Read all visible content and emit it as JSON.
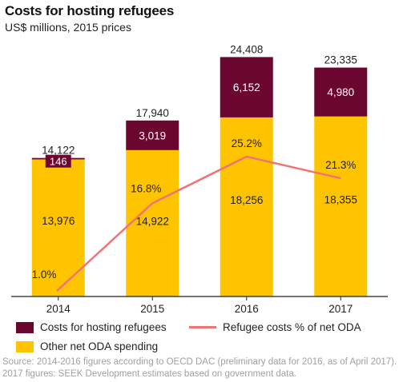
{
  "title": "Costs for hosting refugees",
  "subtitle": "US$ millions, 2015 prices",
  "colors": {
    "hosting": "#6b0631",
    "oda": "#ffc400",
    "line": "#f07474",
    "axis": "#222222"
  },
  "legend": {
    "hosting_label": "Costs for hosting refugees",
    "oda_label": "Other net ODA spending",
    "line_label": "Refugee costs % of net ODA"
  },
  "source": "Source: 2014-2016 figures according to OECD DAC (preliminary data for 2016, as of April 2017). 2017 figures: SEEK Development estimates based on government data.",
  "chart_data": {
    "type": "bar",
    "stacked": true,
    "categories": [
      "2014",
      "2015",
      "2016",
      "2017"
    ],
    "series": [
      {
        "name": "Other net ODA spending",
        "values": [
          13976,
          14922,
          18256,
          18355
        ],
        "labels": [
          "13,976",
          "14,922",
          "18,256",
          "18,355"
        ]
      },
      {
        "name": "Costs for hosting refugees",
        "values": [
          146,
          3019,
          6152,
          4980
        ],
        "labels": [
          "146",
          "3,019",
          "6,152",
          "4,980"
        ]
      }
    ],
    "totals": [
      14122,
      17940,
      24408,
      23335
    ],
    "total_labels": [
      "14,122",
      "17,940",
      "24,408",
      "23,335"
    ],
    "line_series": {
      "name": "Refugee costs % of net ODA",
      "values": [
        1.0,
        16.8,
        25.2,
        21.3
      ],
      "labels": [
        "1.0%",
        "16.8%",
        "25.2%",
        "21.3%"
      ]
    },
    "ylim": [
      0,
      25500
    ],
    "grid": false,
    "legend_position": "bottom"
  }
}
